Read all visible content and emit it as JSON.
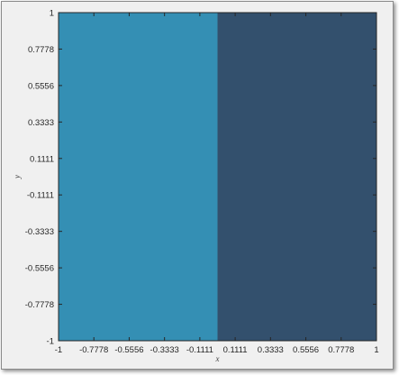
{
  "chart_data": {
    "type": "heatmap",
    "title": "",
    "xlabel": "x",
    "ylabel": "y",
    "xlim": [
      -1,
      1
    ],
    "ylim": [
      -1,
      1
    ],
    "grid": false,
    "x_ticks": [
      "-1",
      "-0.7778",
      "-0.5556",
      "-0.3333",
      "-0.1111",
      "0.1111",
      "0.3333",
      "0.5556",
      "0.7778",
      "1"
    ],
    "y_ticks": [
      "-1",
      "-0.7778",
      "-0.5556",
      "-0.3333",
      "-0.1111",
      "0.1111",
      "0.3333",
      "0.5556",
      "0.7778",
      "1"
    ],
    "regions": [
      {
        "x_range": [
          -1,
          0
        ],
        "y_range": [
          -1,
          1
        ],
        "color": "#348fb4"
      },
      {
        "x_range": [
          0,
          1
        ],
        "y_range": [
          -1,
          1
        ],
        "color": "#33506d"
      }
    ]
  }
}
